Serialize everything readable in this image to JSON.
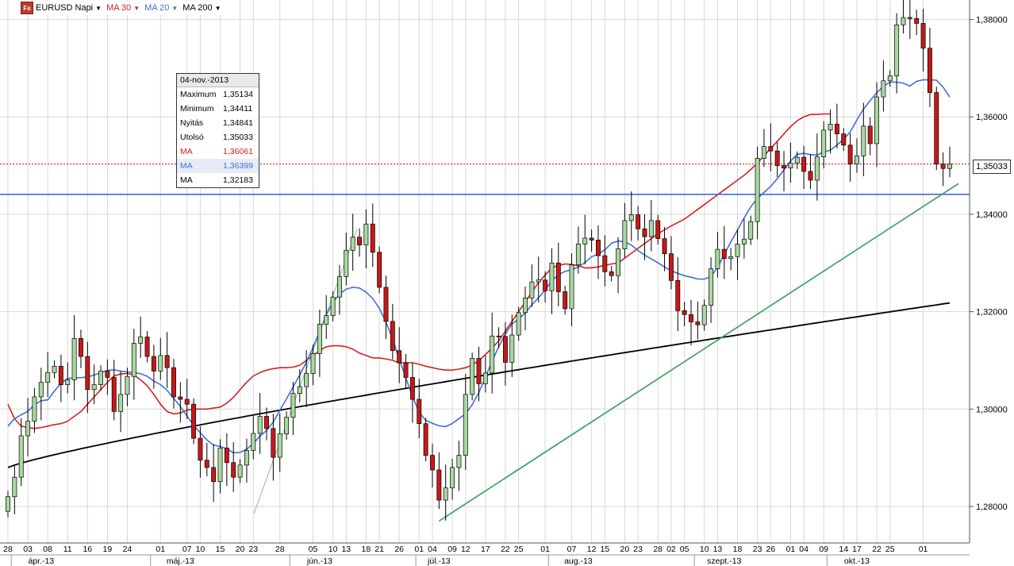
{
  "toolbar": {
    "icon_label": "Fx",
    "instrument": "EURUSD Napi",
    "ma1": {
      "label": "MA 30",
      "color": "#d42020"
    },
    "ma2": {
      "label": "MA 20",
      "color": "#3f6fd8"
    },
    "ma3": {
      "label": "MA 200",
      "color": "#000000"
    }
  },
  "info_box": {
    "date": "04-nov.-2013",
    "rows": [
      {
        "label": "Maximum",
        "value": "1,35134",
        "color": "#000000"
      },
      {
        "label": "Minimum",
        "value": "1,34411",
        "color": "#000000"
      },
      {
        "label": "Nyitás",
        "value": "1,34841",
        "color": "#000000"
      },
      {
        "label": "Utolsó",
        "value": "1,35033",
        "color": "#000000"
      },
      {
        "label": "MA",
        "value": "1,36061",
        "color": "#d42020"
      },
      {
        "label": "MA",
        "value": "1,36399",
        "color": "#3f6fd8"
      },
      {
        "label": "MA",
        "value": "1,32183",
        "color": "#000000"
      }
    ]
  },
  "price_tag": "1,35033",
  "chart_data": {
    "type": "candlestick",
    "ylim": [
      1.2725,
      1.384
    ],
    "y_ticks": [
      1.28,
      1.3,
      1.32,
      1.34,
      1.36,
      1.38
    ],
    "y_tick_labels": [
      "1,28000",
      "1,30000",
      "1,32000",
      "1,34000",
      "1,36000",
      "1,38000"
    ],
    "colors": {
      "up": "#a8d8a0",
      "down": "#c81818"
    },
    "day_labels": [
      "28",
      "03",
      "08",
      "11",
      "16",
      "19",
      "24",
      "01",
      "07",
      "10",
      "15",
      "20",
      "23",
      "28",
      "05",
      "10",
      "13",
      "18",
      "21",
      "26",
      "01",
      "04",
      "09",
      "12",
      "17",
      "22",
      "25",
      "01",
      "07",
      "12",
      "15",
      "20",
      "23",
      "28",
      "02",
      "05",
      "10",
      "13",
      "18",
      "23",
      "26",
      "01",
      "04",
      "09",
      "14",
      "17",
      "22",
      "25",
      "01"
    ],
    "day_label_idx": [
      0,
      3,
      6,
      9,
      12,
      15,
      18,
      23,
      27,
      29,
      32,
      35,
      37,
      41,
      46,
      49,
      51,
      54,
      56,
      59,
      62,
      64,
      67,
      69,
      72,
      75,
      77,
      81,
      85,
      88,
      90,
      93,
      95,
      98,
      100,
      102,
      105,
      107,
      110,
      113,
      115,
      118,
      120,
      123,
      126,
      128,
      131,
      133,
      138
    ],
    "month_labels": [
      "ápr.-13",
      "máj.-13",
      "jún.-13",
      "júl.-13",
      "aug.-13",
      "szept.-13",
      "okt.-13"
    ],
    "month_label_idx": [
      5,
      26,
      47,
      65,
      86,
      108,
      128
    ],
    "month_sep_idx": [
      1,
      22,
      43,
      62,
      82,
      104,
      124
    ],
    "close": [
      1.282,
      1.286,
      1.2945,
      1.2975,
      1.3025,
      1.3055,
      1.3075,
      1.3088,
      1.305,
      1.306,
      1.3145,
      1.3108,
      1.304,
      1.305,
      1.3078,
      1.3065,
      1.2995,
      1.303,
      1.3067,
      1.3135,
      1.3148,
      1.3108,
      1.3078,
      1.311,
      1.3085,
      1.3025,
      1.302,
      1.301,
      1.294,
      1.2895,
      1.288,
      1.2851,
      1.292,
      1.289,
      1.286,
      1.2885,
      1.2915,
      1.295,
      1.2985,
      1.296,
      1.2901,
      1.2949,
      1.2983,
      1.3032,
      1.3046,
      1.3073,
      1.3114,
      1.3174,
      1.3192,
      1.323,
      1.3272,
      1.3326,
      1.3353,
      1.3337,
      1.338,
      1.3322,
      1.325,
      1.318,
      1.312,
      1.3095,
      1.3065,
      1.302,
      1.297,
      1.2905,
      1.2875,
      1.2813,
      1.2838,
      1.288,
      1.2905,
      1.303,
      1.3104,
      1.3052,
      1.3074,
      1.315,
      1.3149,
      1.3096,
      1.3152,
      1.3198,
      1.3228,
      1.3261,
      1.3265,
      1.3243,
      1.33,
      1.3241,
      1.3206,
      1.3296,
      1.3339,
      1.3351,
      1.3347,
      1.3315,
      1.3282,
      1.3274,
      1.3329,
      1.3387,
      1.3399,
      1.337,
      1.3354,
      1.3387,
      1.335,
      1.3319,
      1.3264,
      1.3202,
      1.3194,
      1.3179,
      1.3173,
      1.3213,
      1.3288,
      1.3328,
      1.3309,
      1.3313,
      1.3339,
      1.3349,
      1.3385,
      1.3515,
      1.3539,
      1.353,
      1.35,
      1.3495,
      1.3505,
      1.3517,
      1.3488,
      1.347,
      1.3518,
      1.3573,
      1.3585,
      1.3565,
      1.3542,
      1.3503,
      1.352,
      1.3581,
      1.3545,
      1.3641,
      1.3674,
      1.3684,
      1.3789,
      1.3804,
      1.3802,
      1.3792,
      1.3741,
      1.365,
      1.3503,
      1.3494,
      1.3503
    ],
    "ma_red": [
      1.301,
      1.298,
      1.2965,
      1.2962,
      1.296,
      1.2962,
      1.2965,
      1.2968,
      1.297,
      1.2975,
      1.2985,
      1.2995,
      1.301,
      1.3025,
      1.304,
      1.3055,
      1.3068,
      1.3072,
      1.3073,
      1.307,
      1.306,
      1.3048,
      1.303,
      1.301,
      1.2995,
      1.299,
      1.2992,
      1.2998,
      1.3,
      1.3,
      1.3,
      1.3002,
      1.3004,
      1.3012,
      1.3024,
      1.304,
      1.3055,
      1.3068,
      1.3075,
      1.308,
      1.3083,
      1.3085,
      1.3085,
      1.3086,
      1.309,
      1.31,
      1.311,
      1.312,
      1.3128,
      1.313,
      1.313,
      1.3128,
      1.3123,
      1.3115,
      1.311,
      1.3105,
      1.3105,
      1.3103,
      1.31,
      1.3095,
      1.3095,
      1.3095,
      1.3092,
      1.3088,
      1.3085,
      1.3082,
      1.308,
      1.308,
      1.3082,
      1.3085,
      1.309,
      1.31,
      1.3112,
      1.3125,
      1.314,
      1.316,
      1.318,
      1.32,
      1.322,
      1.324,
      1.326,
      1.3275,
      1.329,
      1.3295,
      1.3298,
      1.3297,
      1.3294,
      1.329,
      1.329,
      1.3292,
      1.3295,
      1.3298,
      1.33,
      1.331,
      1.332,
      1.333,
      1.334,
      1.335,
      1.336,
      1.3368,
      1.3376,
      1.3383,
      1.339,
      1.34,
      1.341,
      1.342,
      1.343,
      1.344,
      1.345,
      1.346,
      1.347,
      1.348,
      1.3492,
      1.3505,
      1.352,
      1.3535,
      1.355,
      1.3565,
      1.358,
      1.3592,
      1.36,
      1.3605,
      1.3605,
      1.3606,
      1.3606
    ]
  }
}
